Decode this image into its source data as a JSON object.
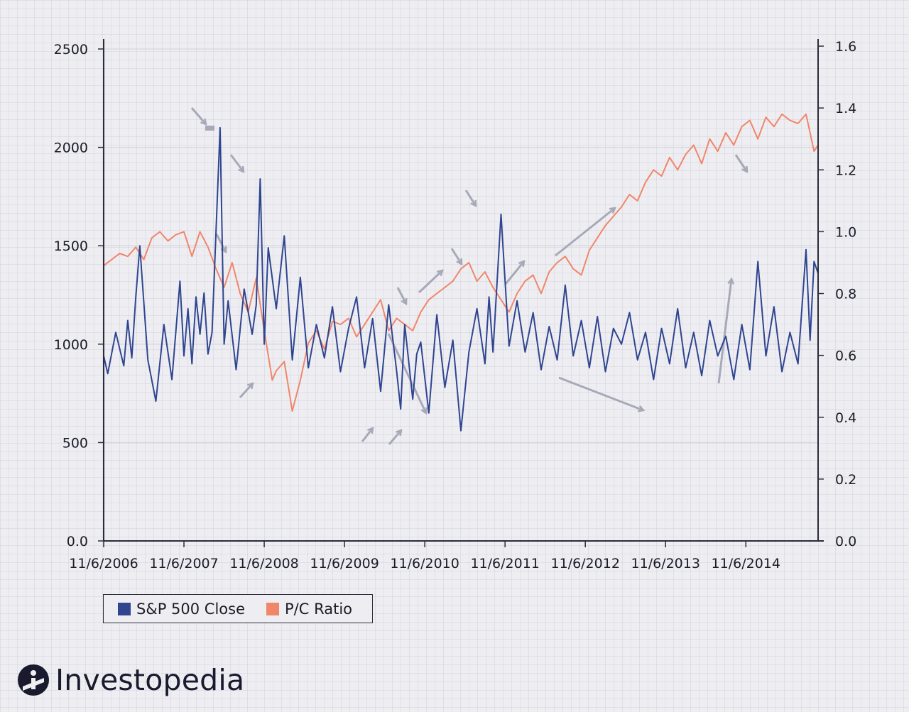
{
  "chart_data": {
    "type": "line",
    "title": "",
    "xlabel": "",
    "ylabel": "",
    "x_tick_labels": [
      "11/6/2006",
      "11/6/2007",
      "11/6/2008",
      "11/6/2009",
      "11/6/2010",
      "11/6/2011",
      "11/6/2012",
      "11/6/2013",
      "11/6/2014"
    ],
    "x_range": [
      2006.85,
      2015.75
    ],
    "y_left_ticks": [
      "0.0",
      "500",
      "1000",
      "1500",
      "2000",
      "2500"
    ],
    "y_left_range": [
      0,
      2500
    ],
    "y_right_ticks": [
      "0.0",
      "0.2",
      "0.4",
      "0.6",
      "0.8",
      "1.0",
      "1.2",
      "1.4",
      "1.6"
    ],
    "y_right_range": [
      0,
      1.6
    ],
    "grid": "horizontal",
    "legend_position": "bottom-left",
    "series": [
      {
        "name": "S&P 500 Close",
        "axis": "left",
        "color": "#2f4590",
        "x": [
          2006.85,
          2006.9,
          2007.0,
          2007.1,
          2007.15,
          2007.2,
          2007.25,
          2007.3,
          2007.4,
          2007.5,
          2007.6,
          2007.7,
          2007.8,
          2007.85,
          2007.9,
          2007.95,
          2008.0,
          2008.05,
          2008.1,
          2008.15,
          2008.2,
          2008.3,
          2008.35,
          2008.4,
          2008.5,
          2008.6,
          2008.7,
          2008.75,
          2008.8,
          2008.85,
          2008.9,
          2009.0,
          2009.1,
          2009.2,
          2009.3,
          2009.4,
          2009.5,
          2009.6,
          2009.7,
          2009.8,
          2009.9,
          2010.0,
          2010.1,
          2010.2,
          2010.3,
          2010.4,
          2010.5,
          2010.55,
          2010.6,
          2010.7,
          2010.75,
          2010.8,
          2010.9,
          2011.0,
          2011.1,
          2011.2,
          2011.3,
          2011.4,
          2011.5,
          2011.6,
          2011.65,
          2011.7,
          2011.8,
          2011.9,
          2012.0,
          2012.1,
          2012.2,
          2012.3,
          2012.4,
          2012.5,
          2012.6,
          2012.7,
          2012.8,
          2012.9,
          2013.0,
          2013.1,
          2013.2,
          2013.3,
          2013.4,
          2013.5,
          2013.6,
          2013.7,
          2013.8,
          2013.9,
          2014.0,
          2014.1,
          2014.2,
          2014.3,
          2014.4,
          2014.5,
          2014.6,
          2014.7,
          2014.8,
          2014.9,
          2015.0,
          2015.1,
          2015.2,
          2015.3,
          2015.4,
          2015.5,
          2015.6,
          2015.65,
          2015.7,
          2015.75
        ],
        "values": [
          940,
          850,
          1060,
          890,
          1120,
          930,
          1240,
          1500,
          920,
          710,
          1100,
          820,
          1320,
          940,
          1180,
          900,
          1240,
          1050,
          1260,
          950,
          1060,
          2100,
          1000,
          1220,
          870,
          1280,
          1050,
          1200,
          1840,
          1000,
          1490,
          1180,
          1550,
          920,
          1340,
          880,
          1100,
          930,
          1190,
          860,
          1080,
          1240,
          880,
          1130,
          760,
          1200,
          860,
          670,
          1100,
          720,
          950,
          1010,
          650,
          1150,
          780,
          1020,
          560,
          960,
          1180,
          900,
          1240,
          960,
          1660,
          990,
          1220,
          960,
          1160,
          870,
          1090,
          920,
          1300,
          940,
          1120,
          880,
          1140,
          860,
          1080,
          1000,
          1160,
          920,
          1060,
          820,
          1080,
          900,
          1180,
          880,
          1060,
          840,
          1120,
          940,
          1040,
          820,
          1100,
          870,
          1420,
          940,
          1190,
          860,
          1060,
          900,
          1480,
          1020,
          1420,
          1360
        ]
      },
      {
        "name": "P/C Ratio",
        "axis": "right",
        "color": "#f0866a",
        "x": [
          2006.85,
          2006.95,
          2007.05,
          2007.15,
          2007.25,
          2007.35,
          2007.45,
          2007.55,
          2007.65,
          2007.75,
          2007.85,
          2007.95,
          2008.05,
          2008.15,
          2008.25,
          2008.35,
          2008.45,
          2008.55,
          2008.65,
          2008.75,
          2008.85,
          2008.95,
          2009.0,
          2009.1,
          2009.2,
          2009.3,
          2009.4,
          2009.5,
          2009.6,
          2009.7,
          2009.8,
          2009.9,
          2010.0,
          2010.1,
          2010.2,
          2010.3,
          2010.4,
          2010.5,
          2010.6,
          2010.7,
          2010.8,
          2010.9,
          2011.0,
          2011.1,
          2011.2,
          2011.3,
          2011.4,
          2011.5,
          2011.6,
          2011.7,
          2011.8,
          2011.9,
          2012.0,
          2012.1,
          2012.2,
          2012.3,
          2012.4,
          2012.5,
          2012.6,
          2012.7,
          2012.8,
          2012.9,
          2013.0,
          2013.1,
          2013.2,
          2013.3,
          2013.4,
          2013.5,
          2013.6,
          2013.7,
          2013.8,
          2013.9,
          2014.0,
          2014.1,
          2014.2,
          2014.3,
          2014.4,
          2014.5,
          2014.6,
          2014.7,
          2014.8,
          2014.9,
          2015.0,
          2015.1,
          2015.2,
          2015.3,
          2015.4,
          2015.5,
          2015.6,
          2015.65,
          2015.7,
          2015.75
        ],
        "values": [
          0.89,
          0.91,
          0.93,
          0.92,
          0.95,
          0.91,
          0.98,
          1.0,
          0.97,
          0.99,
          1.0,
          0.92,
          1.0,
          0.95,
          0.88,
          0.82,
          0.9,
          0.8,
          0.74,
          0.85,
          0.68,
          0.52,
          0.55,
          0.58,
          0.42,
          0.52,
          0.64,
          0.68,
          0.62,
          0.71,
          0.7,
          0.72,
          0.66,
          0.7,
          0.74,
          0.78,
          0.68,
          0.72,
          0.7,
          0.68,
          0.74,
          0.78,
          0.8,
          0.82,
          0.84,
          0.88,
          0.9,
          0.84,
          0.87,
          0.82,
          0.78,
          0.74,
          0.8,
          0.84,
          0.86,
          0.8,
          0.87,
          0.9,
          0.92,
          0.88,
          0.86,
          0.94,
          0.98,
          1.02,
          1.05,
          1.08,
          1.12,
          1.1,
          1.16,
          1.2,
          1.18,
          1.24,
          1.2,
          1.25,
          1.28,
          1.22,
          1.3,
          1.26,
          1.32,
          1.28,
          1.34,
          1.36,
          1.3,
          1.37,
          1.34,
          1.38,
          1.36,
          1.35,
          1.38,
          1.32,
          1.26,
          1.28
        ]
      }
    ]
  },
  "legend": {
    "items": [
      {
        "label": "S&P 500 Close",
        "color": "#2f4590"
      },
      {
        "label": "P/C Ratio",
        "color": "#f0866a"
      }
    ]
  },
  "logo": {
    "text": "Investopedia"
  },
  "annotation_arrow_color": "#a7a9b8"
}
